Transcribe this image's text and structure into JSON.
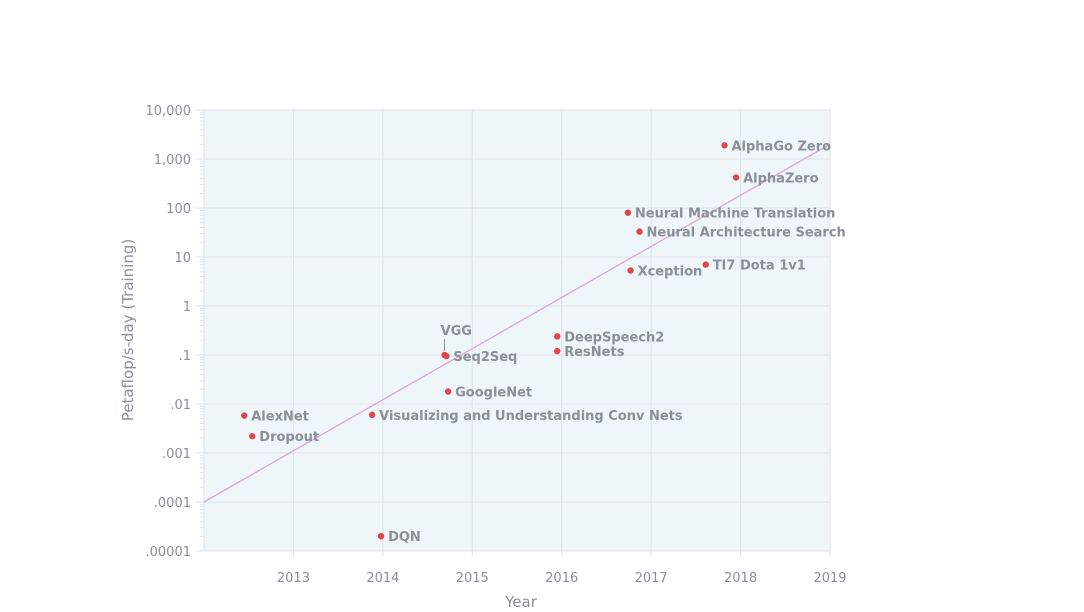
{
  "colors": {
    "plot_background": "#eef6f9",
    "grid": "#dde3e7",
    "point": "#e0474c",
    "trend_line": "#dba6d6",
    "text": "#8a8f98"
  },
  "chart_data": {
    "type": "scatter",
    "title": "",
    "xlabel": "Year",
    "ylabel": "Petaflop/s-day (Training)",
    "yscale": "log",
    "xlim": [
      2012.0,
      2019.0
    ],
    "ylim": [
      1e-05,
      10000
    ],
    "grid": true,
    "legend": "none",
    "x_ticks": [
      {
        "value": 2013,
        "label": "2013"
      },
      {
        "value": 2014,
        "label": "2014"
      },
      {
        "value": 2015,
        "label": "2015"
      },
      {
        "value": 2016,
        "label": "2016"
      },
      {
        "value": 2017,
        "label": "2017"
      },
      {
        "value": 2018,
        "label": "2018"
      },
      {
        "value": 2019,
        "label": "2019"
      }
    ],
    "y_ticks": [
      {
        "value": 10000,
        "label": "10,000"
      },
      {
        "value": 1000,
        "label": "1,000"
      },
      {
        "value": 100,
        "label": "100"
      },
      {
        "value": 10,
        "label": "10"
      },
      {
        "value": 1,
        "label": "1"
      },
      {
        "value": 0.1,
        "label": ".1"
      },
      {
        "value": 0.01,
        "label": ".01"
      },
      {
        "value": 0.001,
        "label": ".001"
      },
      {
        "value": 0.0001,
        "label": ".0001"
      },
      {
        "value": 1e-05,
        "label": ".00001"
      }
    ],
    "trend_line": {
      "x": [
        2012.0,
        2019.0
      ],
      "y": [
        0.0001,
        2000
      ]
    },
    "points": [
      {
        "label": "AlexNet",
        "x": 2012.45,
        "y": 0.0058
      },
      {
        "label": "Dropout",
        "x": 2012.54,
        "y": 0.0022
      },
      {
        "label": "Visualizing and Understanding Conv Nets",
        "x": 2013.88,
        "y": 0.006
      },
      {
        "label": "DQN",
        "x": 2013.98,
        "y": 2e-05
      },
      {
        "label": "VGG",
        "x": 2014.69,
        "y": 0.1
      },
      {
        "label": "Seq2Seq",
        "x": 2014.71,
        "y": 0.095
      },
      {
        "label": "GoogleNet",
        "x": 2014.73,
        "y": 0.018
      },
      {
        "label": "DeepSpeech2",
        "x": 2015.95,
        "y": 0.24
      },
      {
        "label": "ResNets",
        "x": 2015.95,
        "y": 0.12
      },
      {
        "label": "Neural Machine Translation",
        "x": 2016.74,
        "y": 80
      },
      {
        "label": "Xception",
        "x": 2016.77,
        "y": 5.3
      },
      {
        "label": "Neural Architecture Search",
        "x": 2016.87,
        "y": 33
      },
      {
        "label": "TI7 Dota 1v1",
        "x": 2017.61,
        "y": 7
      },
      {
        "label": "AlphaGo Zero",
        "x": 2017.82,
        "y": 1900
      },
      {
        "label": "AlphaZero",
        "x": 2017.95,
        "y": 420
      }
    ]
  }
}
